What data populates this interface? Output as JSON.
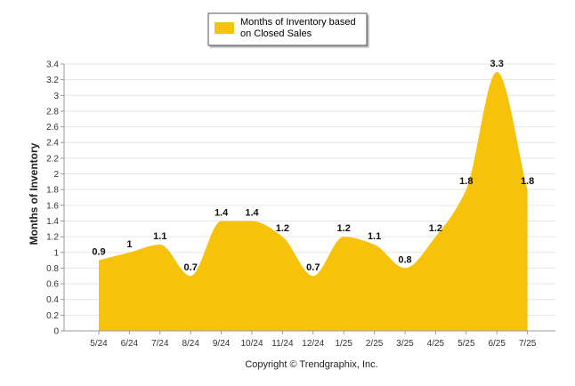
{
  "chart_data": {
    "type": "area",
    "categories": [
      "5/24",
      "6/24",
      "7/24",
      "8/24",
      "9/24",
      "10/24",
      "11/24",
      "12/24",
      "1/25",
      "2/25",
      "3/25",
      "4/25",
      "5/25",
      "6/25",
      "7/25"
    ],
    "series": [
      {
        "name": "Months of Inventory based on Closed Sales",
        "values": [
          0.9,
          1,
          1.1,
          0.7,
          1.4,
          1.4,
          1.2,
          0.7,
          1.2,
          1.1,
          0.8,
          1.2,
          1.8,
          3.3,
          1.8
        ],
        "labels": [
          "0.9",
          "1",
          "1.1",
          "0.7",
          "1.4",
          "1.4",
          "1.2",
          "0.7",
          "1.2",
          "1.1",
          "0.8",
          "1.2",
          "1.8",
          "3.3",
          "1.8"
        ],
        "color": "#F7C20A"
      }
    ],
    "ylabel": "Months of Inventory",
    "xlabel": "",
    "ylim": [
      0,
      3.4
    ],
    "yticks": [
      "0",
      "0.2",
      "0.4",
      "0.6",
      "0.8",
      "1",
      "1.2",
      "1.4",
      "1.6",
      "1.8",
      "2",
      "2.2",
      "2.4",
      "2.6",
      "2.8",
      "3",
      "3.2",
      "3.4"
    ],
    "grid": true,
    "legend_position": "top-center",
    "legend_lines": [
      "Months of Inventory based",
      "on Closed Sales"
    ],
    "footer": "Copyright © Trendgraphix, Inc."
  }
}
